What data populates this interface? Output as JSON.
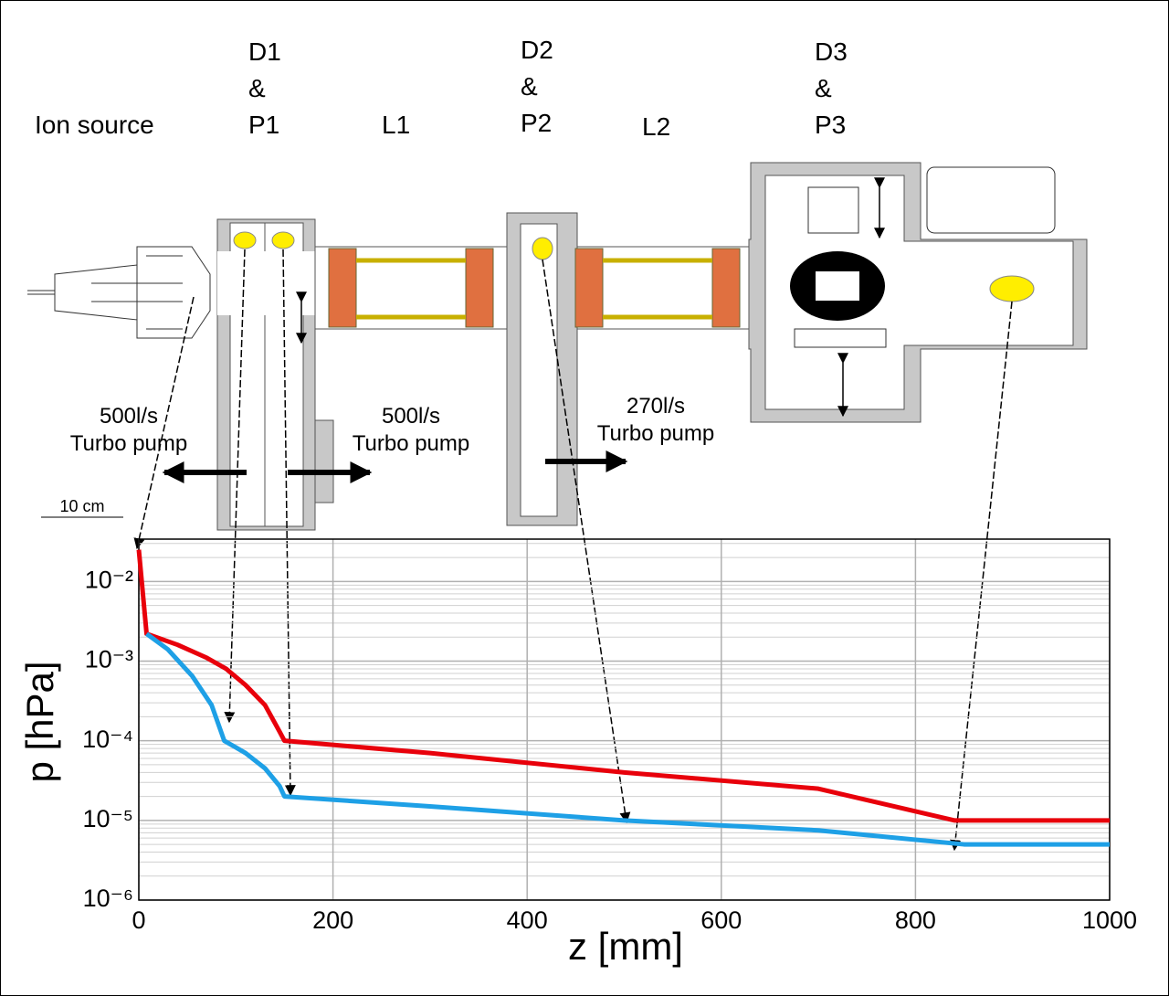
{
  "chart_data": {
    "type": "line",
    "annotations": {
      "ion_source": "Ion source",
      "d1p1": [
        "D1",
        "&",
        "P1"
      ],
      "l1": "L1",
      "d2p2": [
        "D2",
        "&",
        "P2"
      ],
      "l2": "L2",
      "d3p3": [
        "D3",
        "&",
        "P3"
      ],
      "pump1": [
        "500l/s",
        "Turbo pump"
      ],
      "pump2": [
        "500l/s",
        "Turbo pump"
      ],
      "pump3": [
        "270l/s",
        "Turbo pump"
      ],
      "scale": "10 cm"
    },
    "x_label": "z [mm]",
    "y_label": "p [hPa]",
    "log_y": true,
    "grid": true,
    "minor_grid": true,
    "xlim": [
      0,
      1000
    ],
    "xticks": [
      0,
      200,
      400,
      600,
      800,
      1000
    ],
    "ylim": [
      1e-06,
      0.034
    ],
    "yticks": [
      {
        "value": 1e-06,
        "label": "10⁻⁶"
      },
      {
        "value": 1e-05,
        "label": "10⁻⁵"
      },
      {
        "value": 0.0001,
        "label": "10⁻⁴"
      },
      {
        "value": 0.001,
        "label": "10⁻³"
      },
      {
        "value": 0.01,
        "label": "10⁻²"
      }
    ],
    "series": [
      {
        "color": "#e8000b",
        "x": [
          0,
          8,
          40,
          70,
          90,
          110,
          130,
          145,
          150,
          300,
          500,
          700,
          840,
          855,
          1000
        ],
        "values": [
          0.025,
          0.0022,
          0.0016,
          0.0011,
          0.0008,
          0.0005,
          0.00028,
          0.00013,
          0.0001,
          7e-05,
          4e-05,
          2.5e-05,
          1e-05,
          1e-05,
          1e-05
        ]
      },
      {
        "color": "#1ea0e6",
        "x": [
          8,
          30,
          55,
          75,
          88,
          110,
          130,
          145,
          150,
          300,
          500,
          700,
          850,
          1000
        ],
        "values": [
          0.0022,
          0.0014,
          0.00065,
          0.00028,
          0.0001,
          7e-05,
          4.5e-05,
          2.7e-05,
          2e-05,
          1.5e-05,
          1e-05,
          7.5e-06,
          5e-06,
          5e-06
        ]
      }
    ]
  }
}
